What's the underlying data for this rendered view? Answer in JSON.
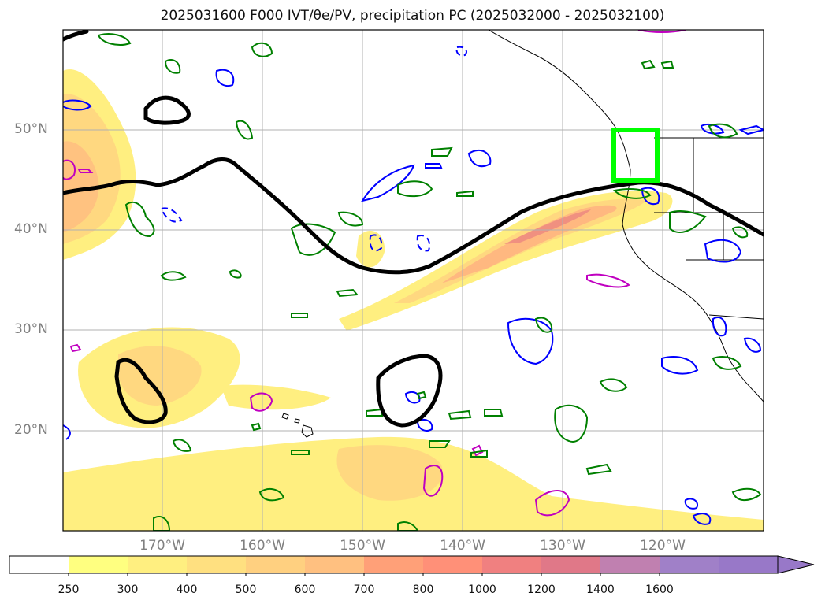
{
  "title": "2025031600 F000 IVT/θe/PV, precipitation PC (2025032000 - 2025032100)",
  "map": {
    "lat_labels": [
      "50°N",
      "40°N",
      "30°N",
      "20°N"
    ],
    "lon_labels": [
      "170°W",
      "160°W",
      "150°W",
      "140°W",
      "130°W",
      "120°W"
    ],
    "extent": {
      "lon_min": -180,
      "lon_max": -110,
      "lat_min": 10,
      "lat_max": 60
    },
    "highlight_box_color": "#00ff00",
    "contour_colors": {
      "theta_e": "#000000",
      "pv": "#0000ff",
      "precip": "#008000",
      "magenta": "#c000c0"
    }
  },
  "colorbar": {
    "ticks": [
      "250",
      "300",
      "400",
      "500",
      "600",
      "700",
      "800",
      "1000",
      "1200",
      "1400",
      "1600"
    ],
    "colors": [
      "#ffffff",
      "#ffff80",
      "#ffef80",
      "#ffe080",
      "#ffd080",
      "#ffc080",
      "#ffa078",
      "#ff9078",
      "#f08080",
      "#e07888",
      "#c080b0",
      "#a080c8",
      "#9878c8"
    ]
  }
}
